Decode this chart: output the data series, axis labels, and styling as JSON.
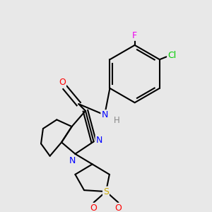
{
  "background_color": "#e8e8e8",
  "bond_color": "#000000",
  "bond_width": 1.5,
  "atom_colors": {
    "O": "#ff0000",
    "N": "#0000ff",
    "H": "#888888",
    "S": "#ccaa00",
    "Cl": "#00cc00",
    "F": "#ee00ee",
    "C": "#000000"
  },
  "font_size": 8.5
}
